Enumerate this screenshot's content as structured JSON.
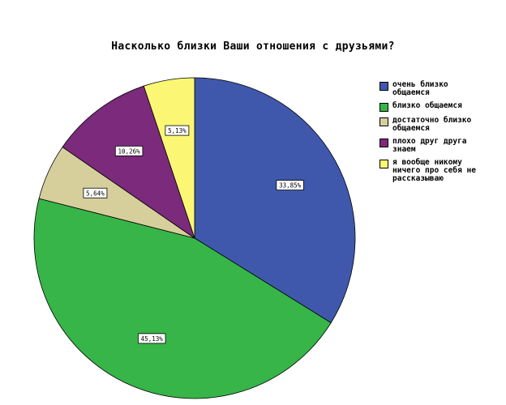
{
  "chart_data": {
    "type": "pie",
    "title": "Насколько близки Ваши отношения с друзьями?",
    "slices": [
      {
        "name": "очень близко общаемся",
        "value": 33.85,
        "label": "33,85%",
        "color": "#3f58ac"
      },
      {
        "name": "близко общаемся",
        "value": 45.13,
        "label": "45,13%",
        "color": "#37b548"
      },
      {
        "name": "достаточно близко общаемся",
        "value": 5.64,
        "label": "5,64%",
        "color": "#d6cf9c"
      },
      {
        "name": "плохо друг друга знаем",
        "value": 10.26,
        "label": "10,26%",
        "color": "#7b2a7c"
      },
      {
        "name": "я вообще никому ничего про себя не рассказываю",
        "value": 5.13,
        "label": "5,13%",
        "color": "#fbf775"
      }
    ],
    "start_angle_deg": 0,
    "direction": "clockwise",
    "legend_position": "right"
  },
  "legend": {
    "items": [
      {
        "label": "очень близко\nобщаемся",
        "color": "#3f58ac"
      },
      {
        "label": "близко общаемся",
        "color": "#37b548"
      },
      {
        "label": "достаточно близко\nобщаемся",
        "color": "#d6cf9c"
      },
      {
        "label": "плохо друг друга\nзнаем",
        "color": "#7b2a7c"
      },
      {
        "label": "я вообще никому\nничего про себя не\nрассказываю",
        "color": "#fbf775"
      }
    ]
  }
}
